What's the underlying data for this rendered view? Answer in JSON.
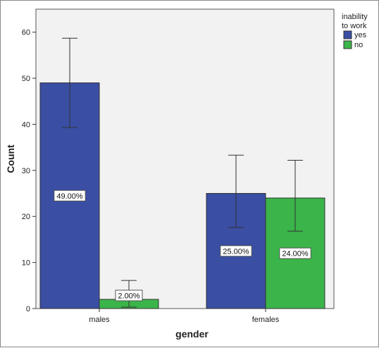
{
  "chart_data": {
    "type": "bar",
    "categories": [
      "males",
      "females"
    ],
    "series": [
      {
        "name": "yes",
        "color": "#3a4ea3",
        "values": [
          49,
          25
        ],
        "error_low": [
          39.3,
          17.6
        ],
        "error_high": [
          58.7,
          33.3
        ],
        "data_labels": [
          "49.00%",
          "25.00%"
        ]
      },
      {
        "name": "no",
        "color": "#3bb54a",
        "values": [
          2,
          24
        ],
        "error_low": [
          0.3,
          16.8
        ],
        "error_high": [
          6.1,
          32.2
        ],
        "data_labels": [
          "2.00%",
          "24.00%"
        ]
      }
    ],
    "xlabel": "gender",
    "ylabel": "Count",
    "ylim": [
      0,
      65
    ],
    "yticks": [
      0,
      10,
      20,
      30,
      40,
      50,
      60
    ],
    "legend": {
      "title_lines": [
        "inability",
        "to work"
      ],
      "position": "top-right"
    },
    "plot_background": "#f2f2f2",
    "grid": false
  }
}
